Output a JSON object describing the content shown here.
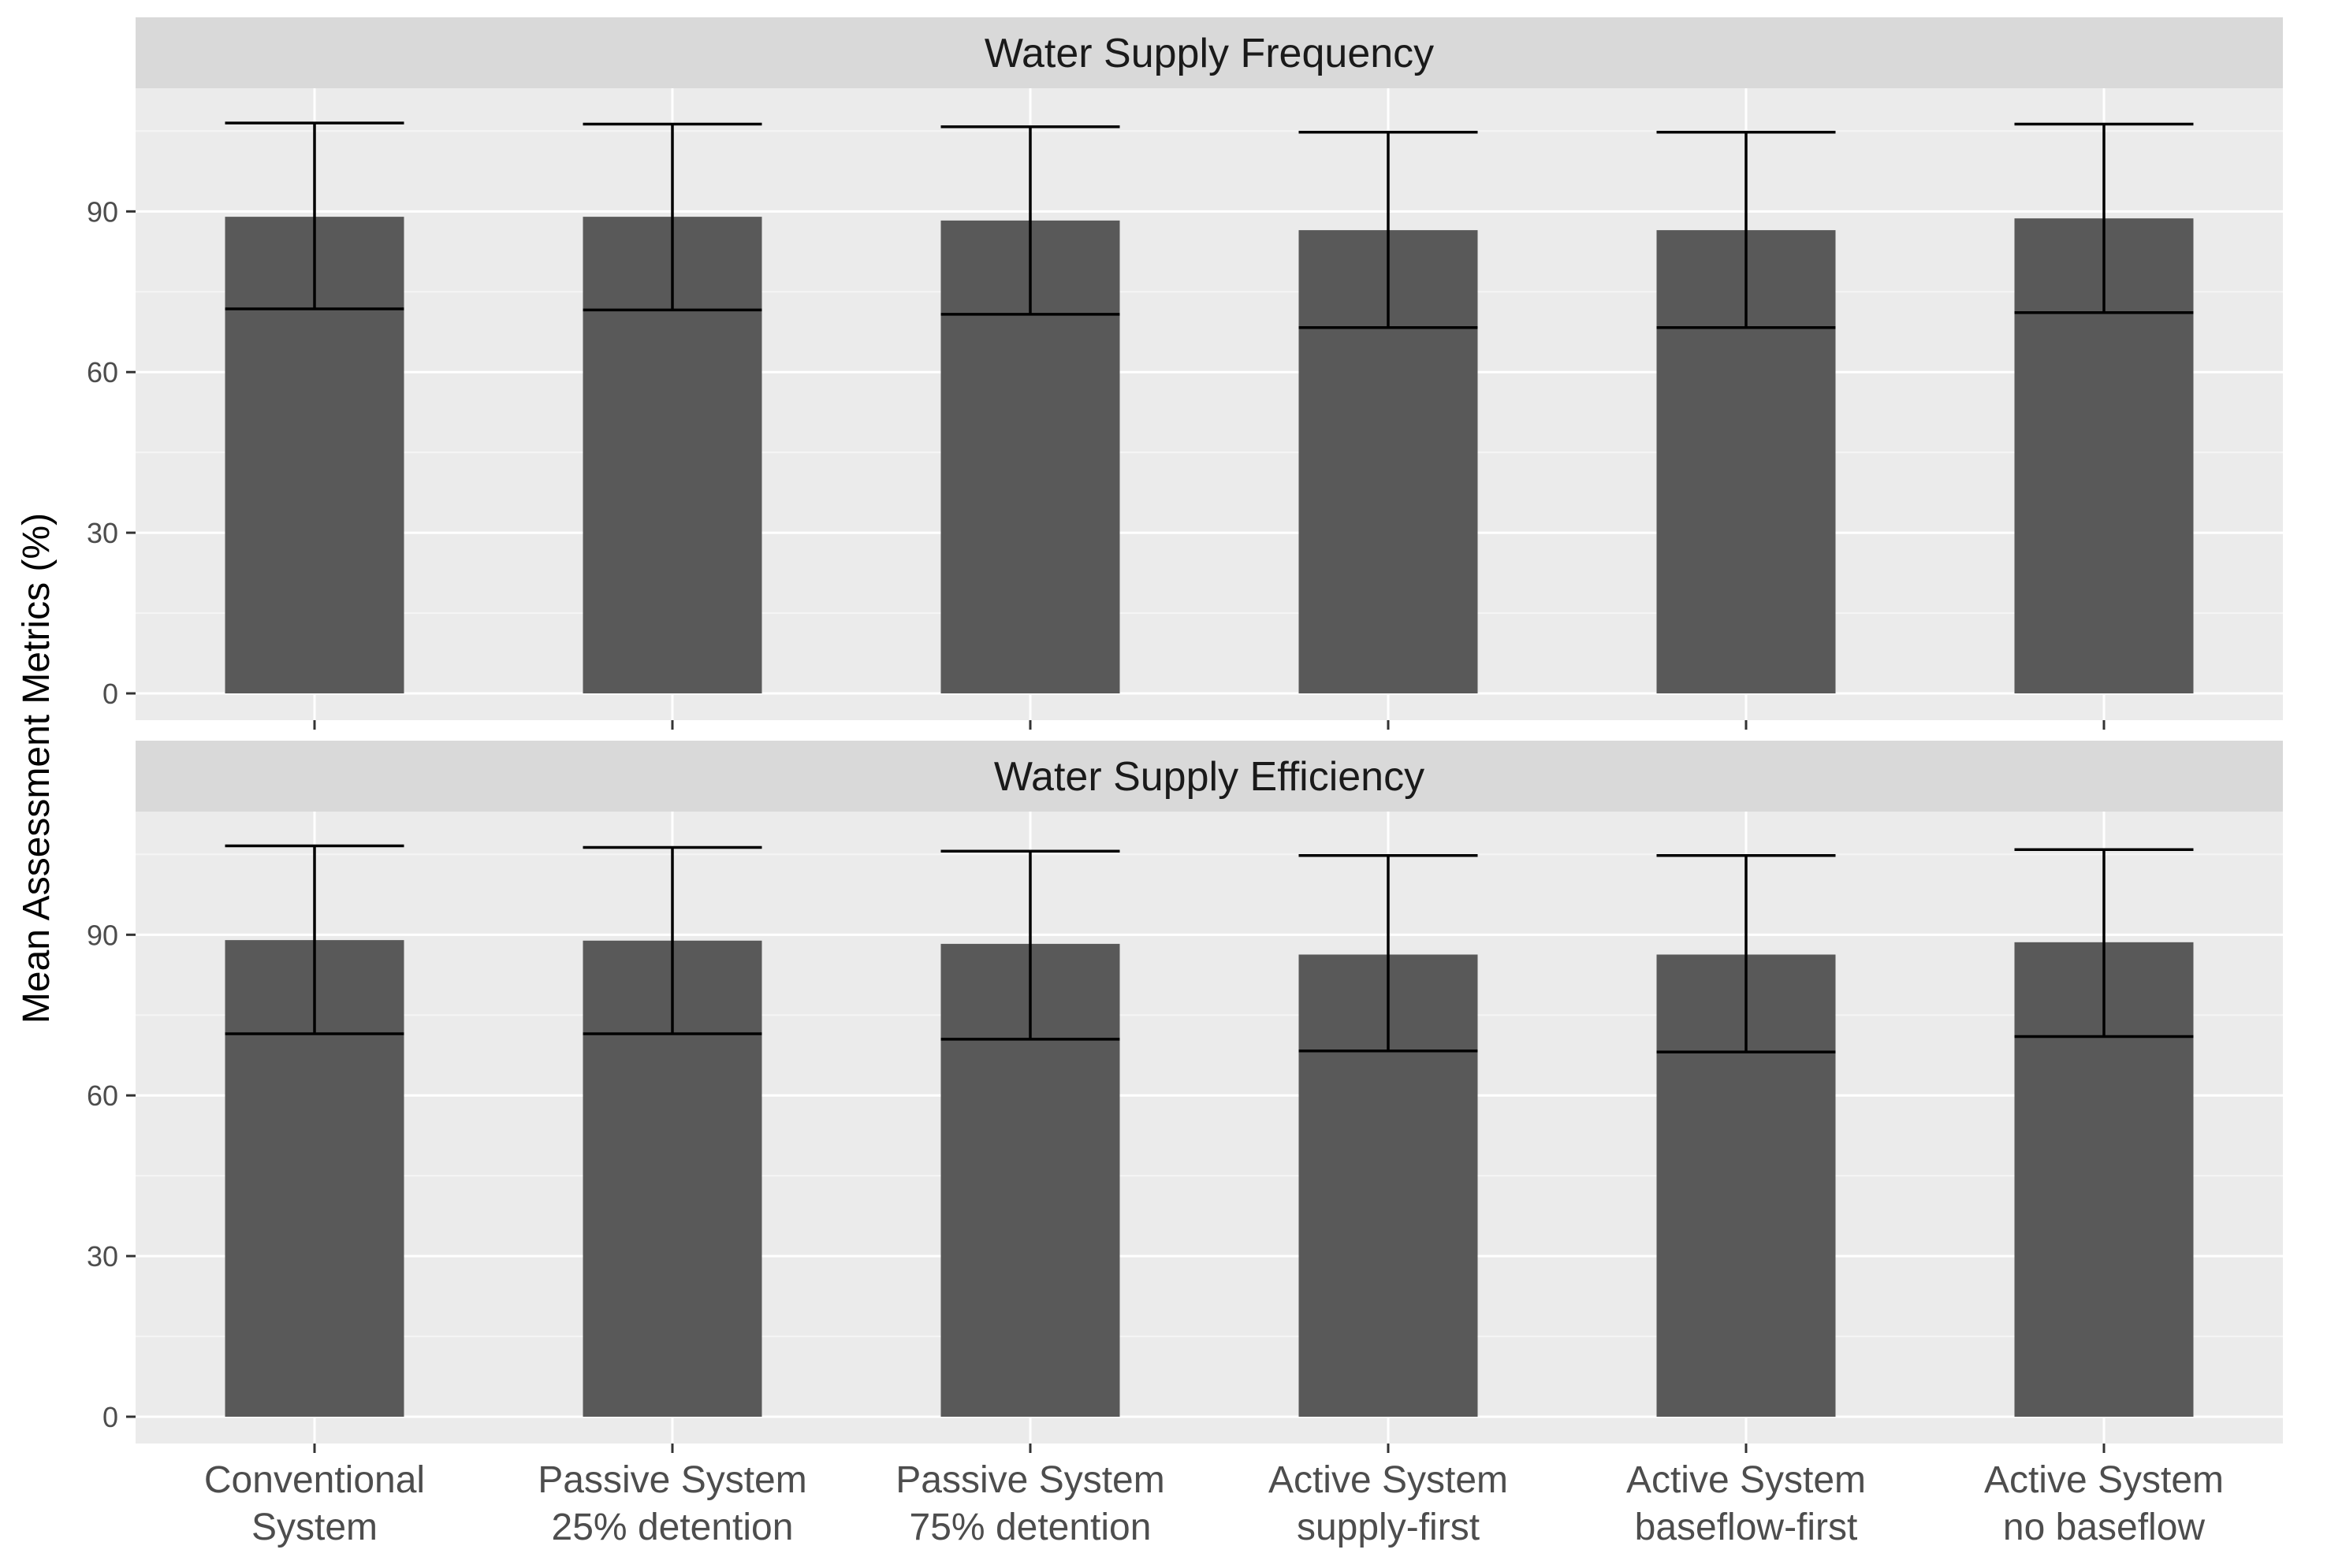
{
  "colors": {
    "panel_bg": "#EBEBEB",
    "strip_bg": "#D9D9D9",
    "grid_major": "#FFFFFF",
    "grid_minor": "#F5F5F5",
    "bar": "#595959",
    "errorbar": "#000000",
    "tick": "#333333"
  },
  "chart_data": {
    "type": "bar",
    "ylabel": "Mean Assessment Metrics (%)",
    "xlabel": "",
    "categories": [
      [
        "Conventional",
        "System"
      ],
      [
        "Passive System",
        "25% detention"
      ],
      [
        "Passive System",
        "75% detention"
      ],
      [
        "Active System",
        "supply-first"
      ],
      [
        "Active System",
        "baseflow-first"
      ],
      [
        "Active System",
        "no baseflow"
      ]
    ],
    "ylim": [
      -5,
      113
    ],
    "yticks": [
      0,
      30,
      60,
      90
    ],
    "grid": true,
    "panels": [
      {
        "title": "Water Supply Frequency",
        "values": [
          89.0,
          89.0,
          88.3,
          86.5,
          86.5,
          88.7
        ],
        "error_low": [
          71.8,
          71.6,
          70.8,
          68.3,
          68.3,
          71.1
        ],
        "error_high": [
          106.5,
          106.3,
          105.8,
          104.8,
          104.8,
          106.3
        ]
      },
      {
        "title": "Water Supply Efficiency",
        "values": [
          89.0,
          88.9,
          88.3,
          86.3,
          86.3,
          88.6
        ],
        "error_low": [
          71.5,
          71.5,
          70.5,
          68.3,
          68.1,
          71.0
        ],
        "error_high": [
          106.6,
          106.3,
          105.6,
          104.8,
          104.8,
          105.9
        ]
      }
    ]
  }
}
